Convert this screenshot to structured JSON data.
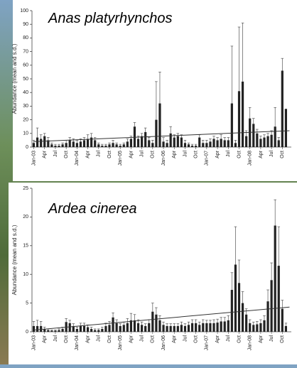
{
  "chart_data": [
    {
      "type": "bar",
      "title": "Anas platyrhynchos",
      "ylabel": "Abundance (mean and s.d.)",
      "color": "#222222",
      "categories": [
        "Jan-03",
        null,
        null,
        "Apr",
        null,
        null,
        "Jul",
        null,
        null,
        "Oct",
        null,
        null,
        "Jan-04",
        null,
        null,
        "Apr",
        null,
        null,
        "Jul",
        null,
        null,
        "Oct",
        null,
        null,
        "Jan-05",
        null,
        null,
        "Apr",
        null,
        null,
        "Jul",
        null,
        null,
        "Oct",
        null,
        null,
        "Jan-06",
        null,
        null,
        "Apr",
        null,
        null,
        "Jul",
        null,
        null,
        "Oct",
        null,
        null,
        "Jan-07",
        null,
        null,
        "Apr",
        null,
        null,
        "Jul",
        null,
        null,
        "Oct",
        null,
        null,
        "Jan-08",
        null,
        null,
        "Apr",
        null,
        null,
        "Jul",
        null,
        null,
        "Oct",
        null,
        null
      ],
      "values": [
        3,
        7,
        6,
        8,
        5,
        2,
        1,
        1,
        2,
        3,
        5,
        4,
        3,
        4,
        5,
        6,
        7,
        5,
        2,
        1,
        1,
        2,
        3,
        2,
        1,
        2,
        4,
        6,
        15,
        6,
        8,
        11,
        5,
        3,
        20,
        32,
        4,
        3,
        10,
        7,
        8,
        7,
        3,
        2,
        1,
        1,
        7,
        3,
        3,
        4,
        6,
        5,
        6,
        5,
        5,
        32,
        3,
        41,
        48,
        8,
        21,
        17,
        10,
        6,
        7,
        8,
        9,
        15,
        5,
        56,
        28,
        0
      ],
      "errors": [
        2,
        7,
        3,
        2,
        2,
        1,
        1,
        1,
        1,
        2,
        2,
        2,
        2,
        2,
        2,
        3,
        3,
        2,
        1,
        1,
        1,
        1,
        2,
        1,
        1,
        1,
        2,
        2,
        3,
        2,
        2,
        3,
        2,
        2,
        28,
        23,
        3,
        2,
        5,
        2,
        2,
        2,
        2,
        1,
        1,
        1,
        2,
        2,
        2,
        2,
        2,
        2,
        3,
        2,
        2,
        42,
        2,
        47,
        43,
        4,
        8,
        4,
        3,
        2,
        2,
        2,
        3,
        14,
        2,
        9,
        0,
        0
      ],
      "trend": [
        4,
        12
      ],
      "ylim": [
        0,
        100
      ],
      "yticks": [
        0,
        10,
        20,
        30,
        40,
        50,
        60,
        70,
        80,
        90,
        100
      ]
    },
    {
      "type": "bar",
      "title": "Ardea cinerea",
      "ylabel": "Abundance (mean and s.d.)",
      "color": "#222222",
      "categories": [
        "Jan-03",
        null,
        null,
        "Apr",
        null,
        null,
        "Jul",
        null,
        null,
        "Oct",
        null,
        null,
        "Jan-04",
        null,
        null,
        "Apr",
        null,
        null,
        "Jul",
        null,
        null,
        "Oct",
        null,
        null,
        "Jan-05",
        null,
        null,
        "Apr",
        null,
        null,
        "Jul",
        null,
        null,
        "Oct",
        null,
        null,
        "Jan-06",
        null,
        null,
        "Apr",
        null,
        null,
        "Jul",
        null,
        null,
        "Oct",
        null,
        null,
        "Jan-07",
        null,
        null,
        "Apr",
        null,
        null,
        "Jul",
        null,
        null,
        "Oct",
        null,
        null,
        "Jan-08",
        null,
        null,
        "Apr",
        null,
        null,
        "Jul",
        null,
        null,
        "Oct",
        null,
        null
      ],
      "values": [
        1,
        1,
        1,
        0.5,
        0.3,
        0.2,
        0.2,
        0.3,
        0.5,
        1.7,
        1.5,
        1,
        0.5,
        1,
        1,
        0.8,
        0.5,
        0.3,
        0.3,
        0.5,
        1,
        1.2,
        2.5,
        1.5,
        1,
        1.2,
        1.5,
        2,
        2,
        1.5,
        1.2,
        1,
        1.5,
        3.5,
        3,
        2,
        1.2,
        1,
        1,
        1,
        1,
        1.2,
        1,
        1.2,
        1.5,
        1.5,
        1.2,
        1.5,
        1.5,
        1.5,
        1.5,
        1.6,
        1.8,
        1.8,
        2,
        7.3,
        11.7,
        8.5,
        5,
        3,
        1.5,
        1.2,
        1.3,
        1.5,
        2,
        5.3,
        9,
        18.5,
        11.5,
        4,
        1,
        0
      ],
      "errors": [
        0.8,
        1,
        0.8,
        0.3,
        0.2,
        0.1,
        0.1,
        0.2,
        0.3,
        0.6,
        0.5,
        0.4,
        0.3,
        0.5,
        0.5,
        0.4,
        0.3,
        0.2,
        0.2,
        0.3,
        0.5,
        0.6,
        0.8,
        0.6,
        0.4,
        0.5,
        0.8,
        1.2,
        1,
        0.6,
        0.5,
        0.4,
        0.6,
        1.5,
        1.2,
        0.8,
        0.5,
        0.4,
        0.4,
        0.4,
        0.4,
        0.5,
        0.4,
        0.5,
        0.6,
        0.6,
        0.5,
        0.6,
        0.5,
        0.5,
        0.6,
        0.6,
        0.7,
        0.7,
        0.8,
        3,
        6.6,
        4,
        2,
        1,
        0.6,
        0.5,
        0.5,
        0.6,
        0.8,
        2,
        3,
        4.5,
        6.8,
        1.5,
        0.5,
        0
      ],
      "trend": [
        0.3,
        4.3
      ],
      "ylim": [
        0,
        25
      ],
      "yticks": [
        0,
        5,
        10,
        15,
        20,
        25
      ]
    }
  ]
}
